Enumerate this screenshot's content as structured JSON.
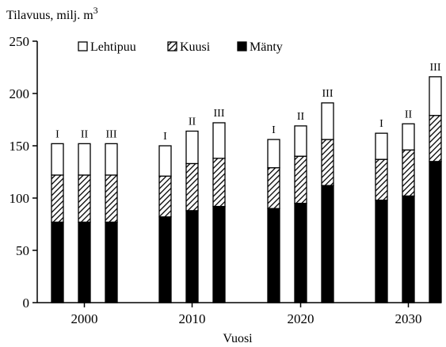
{
  "chart_data": {
    "type": "bar",
    "stacked": true,
    "ylabel": "Tilavuus, milj. m",
    "ylabel_superscript": "3",
    "xlabel": "Vuosi",
    "ylim": [
      0,
      250
    ],
    "yticks": [
      0,
      50,
      100,
      150,
      200,
      250
    ],
    "xticks": [
      "2000",
      "2010",
      "2020",
      "2030"
    ],
    "scenarios": [
      "I",
      "II",
      "III"
    ],
    "legend": {
      "position": "top-left",
      "entries": [
        "Lehtipuu",
        "Kuusi",
        "Mänty"
      ]
    },
    "series": [
      {
        "name": "Mänty",
        "fill": "solid-black",
        "values": [
          [
            77,
            77,
            77
          ],
          [
            82,
            88,
            92
          ],
          [
            90,
            95,
            112
          ],
          [
            98,
            102,
            135
          ]
        ]
      },
      {
        "name": "Kuusi",
        "fill": "diagonal-hatch",
        "values": [
          [
            45,
            45,
            45
          ],
          [
            39,
            45,
            46
          ],
          [
            39,
            45,
            44
          ],
          [
            39,
            44,
            44
          ]
        ]
      },
      {
        "name": "Lehtipuu",
        "fill": "white",
        "values": [
          [
            30,
            30,
            30
          ],
          [
            29,
            31,
            34
          ],
          [
            27,
            29,
            35
          ],
          [
            25,
            25,
            37
          ]
        ]
      }
    ]
  }
}
